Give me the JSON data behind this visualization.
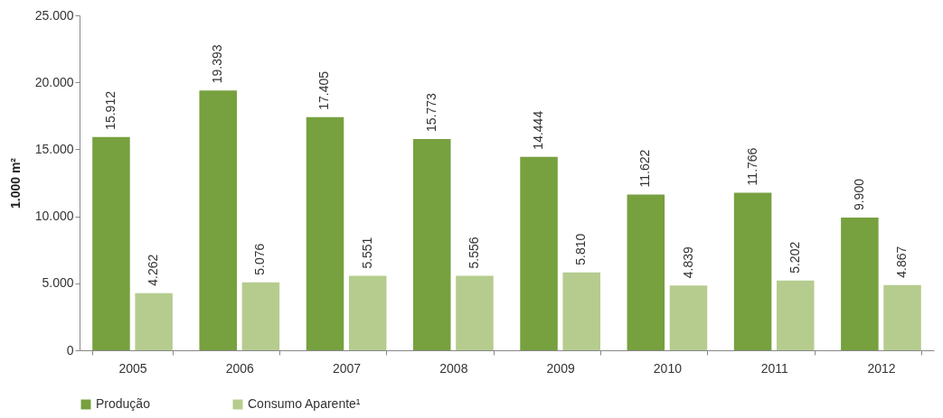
{
  "chart_data": {
    "type": "bar",
    "ylabel": "1.000 m²",
    "categories": [
      "2005",
      "2006",
      "2007",
      "2008",
      "2009",
      "2010",
      "2011",
      "2012"
    ],
    "series": [
      {
        "name": "Produção",
        "color": "#77a03f",
        "values": [
          15912,
          19393,
          17405,
          15773,
          14444,
          11622,
          11766,
          9900
        ],
        "value_labels": [
          "15.912",
          "19.393",
          "17.405",
          "15.773",
          "14.444",
          "11.622",
          "11.766",
          "9.900"
        ]
      },
      {
        "name": "Consumo Aparente¹",
        "color": "#b5cc8e",
        "values": [
          4262,
          5076,
          5551,
          5556,
          5810,
          4839,
          5202,
          4867
        ],
        "value_labels": [
          "4.262",
          "5.076",
          "5.551",
          "5.556",
          "5.810",
          "4.839",
          "5.202",
          "4.867"
        ]
      }
    ],
    "ylim": [
      0,
      25000
    ],
    "yticks": [
      {
        "value": 0,
        "label": "0"
      },
      {
        "value": 5000,
        "label": "5.000"
      },
      {
        "value": 10000,
        "label": "10.000"
      },
      {
        "value": 15000,
        "label": "15.000"
      },
      {
        "value": 20000,
        "label": "20.000"
      },
      {
        "value": 25000,
        "label": "25.000"
      }
    ],
    "grid": false,
    "legend": "bottom"
  }
}
